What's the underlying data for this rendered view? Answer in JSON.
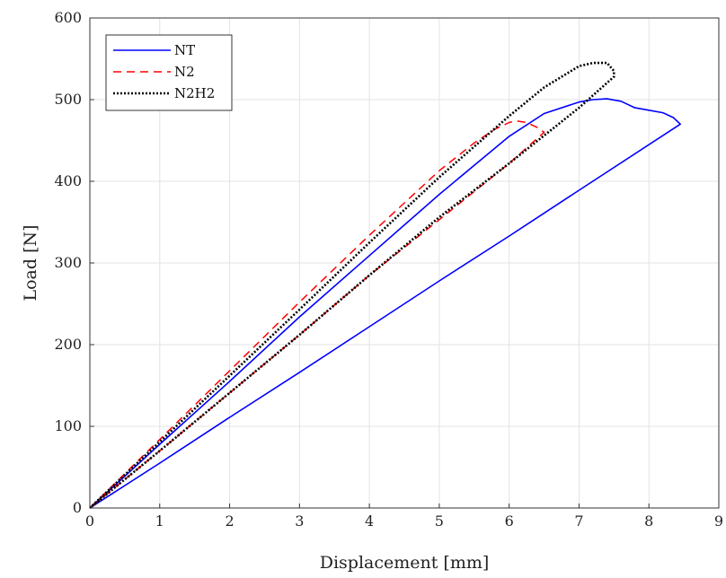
{
  "chart_data": {
    "type": "line",
    "xlabel": "Displacement [mm]",
    "ylabel": "Load [N]",
    "xlim": [
      0,
      9
    ],
    "ylim": [
      0,
      600
    ],
    "xticks": [
      0,
      1,
      2,
      3,
      4,
      5,
      6,
      7,
      8,
      9
    ],
    "yticks": [
      0,
      100,
      200,
      300,
      400,
      500,
      600
    ],
    "grid": true,
    "legend_position": "top-left",
    "series": [
      {
        "name": "NT",
        "color": "#0000ff",
        "style": "solid",
        "x": [
          0,
          1,
          2,
          3,
          4,
          5,
          6,
          6.5,
          7.0,
          7.2,
          7.4,
          7.6,
          7.8,
          8.0,
          8.2,
          8.35,
          8.45,
          8.45,
          7,
          6,
          5,
          4,
          3,
          2,
          1,
          0
        ],
        "y": [
          0,
          78,
          155,
          234,
          309,
          384,
          455,
          483,
          497,
          500,
          501,
          498,
          490,
          487,
          484,
          478,
          470,
          470,
          389,
          333,
          278,
          222,
          166,
          111,
          55,
          0
        ]
      },
      {
        "name": "N2",
        "color": "#ff0000",
        "style": "dashed",
        "x": [
          0,
          1,
          2,
          3,
          4,
          5,
          5.5,
          5.8,
          6.0,
          6.1,
          6.25,
          6.4,
          6.5,
          6,
          5,
          4,
          3,
          2,
          1,
          0
        ],
        "y": [
          0,
          84,
          168,
          252,
          334,
          413,
          447,
          464,
          472,
          474,
          472,
          466,
          460,
          422,
          353,
          285,
          212,
          141,
          70,
          0
        ]
      },
      {
        "name": "N2H2",
        "color": "#000000",
        "style": "dotted",
        "x": [
          0,
          1,
          2,
          3,
          4,
          5,
          6,
          6.5,
          7.0,
          7.2,
          7.4,
          7.5,
          7.5,
          7,
          6,
          5,
          4,
          3,
          2,
          1,
          0
        ],
        "y": [
          0,
          81,
          162,
          243,
          325,
          405,
          480,
          515,
          541,
          545,
          545,
          535,
          528,
          490,
          422,
          356,
          285,
          212,
          141,
          70,
          0
        ]
      }
    ]
  }
}
